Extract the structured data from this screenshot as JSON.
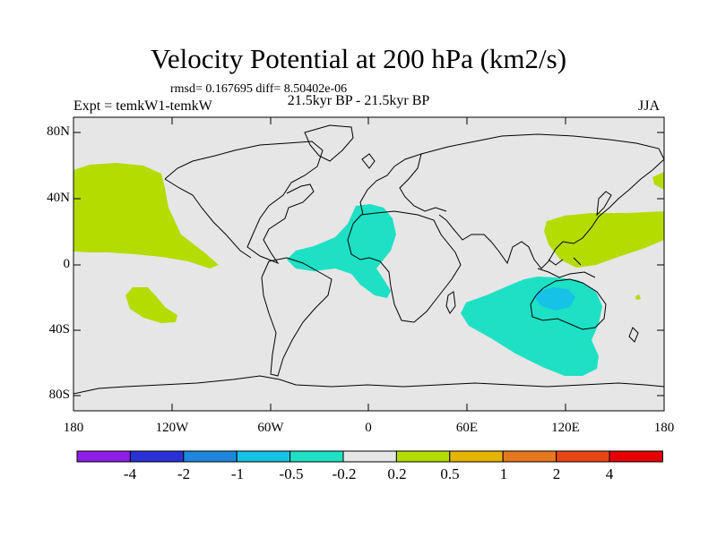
{
  "title": "Velocity Potential at 200 hPa (km2/s)",
  "stats": "rmsd= 0.167695 diff= 8.50402e-06",
  "left_label": "Expt = temkW1-temkW",
  "center_label": "21.5kyr BP - 21.5kyr BP",
  "right_label": "JJA",
  "y_ticks": [
    "80N",
    "40N",
    "0",
    "40S",
    "80S"
  ],
  "x_ticks": [
    "180",
    "120W",
    "60W",
    "0",
    "60E",
    "120E",
    "180"
  ],
  "colorbar": {
    "labels": [
      "-4",
      "-2",
      "-1",
      "-0.5",
      "-0.2",
      "0.2",
      "0.5",
      "1",
      "2",
      "4"
    ],
    "colors": [
      "#8c1ee6",
      "#2a31d6",
      "#1f86dd",
      "#16c2e6",
      "#1ee0c4",
      "#e6e6e6",
      "#b4dc00",
      "#e6b400",
      "#e6781e",
      "#e64614",
      "#e60000"
    ]
  },
  "field_colors": {
    "background": "#e6e6e6",
    "positive_weak": "#b4dc00",
    "negative_weak": "#1ee0c4",
    "negative_moderate": "#16c2e6"
  }
}
